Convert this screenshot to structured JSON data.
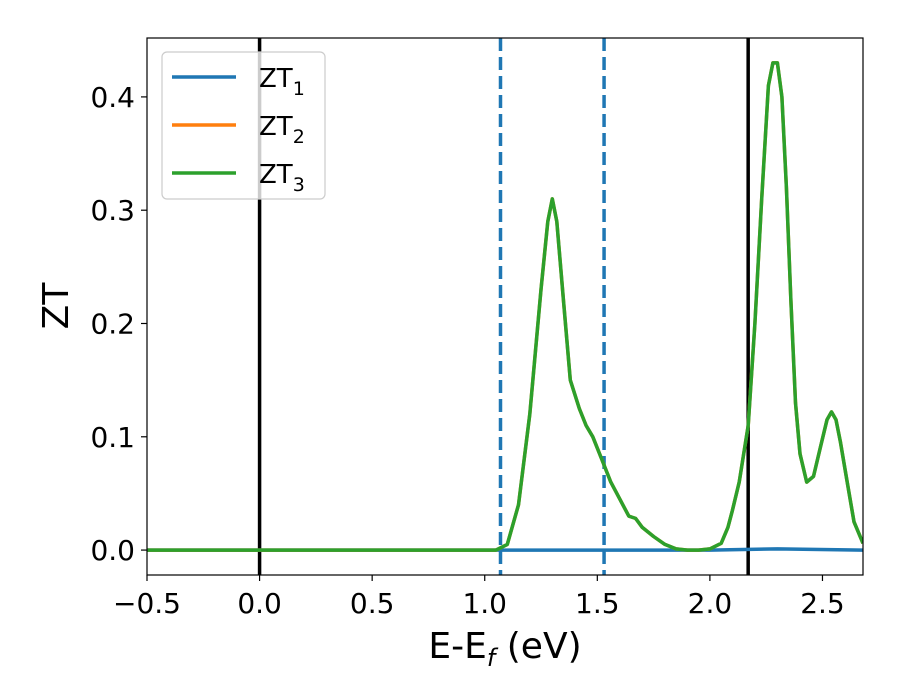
{
  "chart_data": {
    "type": "line",
    "xlabel": "E-E",
    "xlabel_sub": "f",
    "xlabel_unit": " (eV)",
    "ylabel": "ZT",
    "xlim": [
      -0.5,
      2.68
    ],
    "ylim": [
      -0.022,
      0.452
    ],
    "xticks": [
      -0.5,
      0.0,
      0.5,
      1.0,
      1.5,
      2.0,
      2.5
    ],
    "xtick_labels": [
      "−0.5",
      "0.0",
      "0.5",
      "1.0",
      "1.5",
      "2.0",
      "2.5"
    ],
    "yticks": [
      0.0,
      0.1,
      0.2,
      0.3,
      0.4
    ],
    "ytick_labels": [
      "0.0",
      "0.1",
      "0.2",
      "0.3",
      "0.4"
    ],
    "grid": false,
    "legend_position": "upper-left",
    "vlines": [
      {
        "x": 0.0,
        "color": "#000000",
        "style": "solid"
      },
      {
        "x": 2.17,
        "color": "#000000",
        "style": "solid"
      },
      {
        "x": 1.07,
        "color": "#1f77b4",
        "style": "dashed"
      },
      {
        "x": 1.53,
        "color": "#1f77b4",
        "style": "dashed"
      }
    ],
    "series": [
      {
        "name": "ZT",
        "sub": "1",
        "color": "#1f77b4",
        "x": [
          -0.5,
          2.0,
          2.3,
          2.68
        ],
        "y": [
          0.0,
          0.0,
          0.001,
          0.0
        ]
      },
      {
        "name": "ZT",
        "sub": "2",
        "color": "#ff7f0e",
        "x": [
          -0.5,
          1.05,
          1.1,
          1.15,
          1.2,
          1.25,
          1.28,
          1.3,
          1.32,
          1.35,
          1.38,
          1.42,
          1.45,
          1.48,
          1.52,
          1.56,
          1.6,
          1.64,
          1.67,
          1.7,
          1.75,
          1.8,
          1.85,
          1.9,
          1.95,
          2.0,
          2.05,
          2.08,
          2.1,
          2.13,
          2.17,
          2.2,
          2.23,
          2.26,
          2.28,
          2.3,
          2.32,
          2.34,
          2.36,
          2.38,
          2.4,
          2.43,
          2.46,
          2.49,
          2.52,
          2.54,
          2.56,
          2.58,
          2.61,
          2.64,
          2.68
        ],
        "y": [
          0.0,
          0.0,
          0.005,
          0.04,
          0.12,
          0.23,
          0.29,
          0.31,
          0.29,
          0.22,
          0.15,
          0.125,
          0.11,
          0.1,
          0.08,
          0.06,
          0.045,
          0.03,
          0.028,
          0.02,
          0.012,
          0.005,
          0.001,
          0.0,
          0.0,
          0.001,
          0.006,
          0.02,
          0.035,
          0.06,
          0.11,
          0.2,
          0.31,
          0.41,
          0.43,
          0.43,
          0.4,
          0.32,
          0.22,
          0.13,
          0.085,
          0.06,
          0.065,
          0.09,
          0.115,
          0.122,
          0.115,
          0.095,
          0.06,
          0.025,
          0.006
        ]
      },
      {
        "name": "ZT",
        "sub": "3",
        "color": "#2ca02c",
        "x": [
          -0.5,
          1.05,
          1.1,
          1.15,
          1.2,
          1.25,
          1.28,
          1.3,
          1.32,
          1.35,
          1.38,
          1.42,
          1.45,
          1.48,
          1.52,
          1.56,
          1.6,
          1.64,
          1.67,
          1.7,
          1.75,
          1.8,
          1.85,
          1.9,
          1.95,
          2.0,
          2.05,
          2.08,
          2.1,
          2.13,
          2.17,
          2.2,
          2.23,
          2.26,
          2.28,
          2.3,
          2.32,
          2.34,
          2.36,
          2.38,
          2.4,
          2.43,
          2.46,
          2.49,
          2.52,
          2.54,
          2.56,
          2.58,
          2.61,
          2.64,
          2.68
        ],
        "y": [
          0.0,
          0.0,
          0.005,
          0.04,
          0.12,
          0.23,
          0.29,
          0.31,
          0.29,
          0.22,
          0.15,
          0.125,
          0.11,
          0.1,
          0.08,
          0.06,
          0.045,
          0.03,
          0.028,
          0.02,
          0.012,
          0.005,
          0.001,
          0.0,
          0.0,
          0.001,
          0.006,
          0.02,
          0.035,
          0.06,
          0.11,
          0.2,
          0.31,
          0.41,
          0.43,
          0.43,
          0.4,
          0.32,
          0.22,
          0.13,
          0.085,
          0.06,
          0.065,
          0.09,
          0.115,
          0.122,
          0.115,
          0.095,
          0.06,
          0.025,
          0.006
        ]
      }
    ]
  }
}
